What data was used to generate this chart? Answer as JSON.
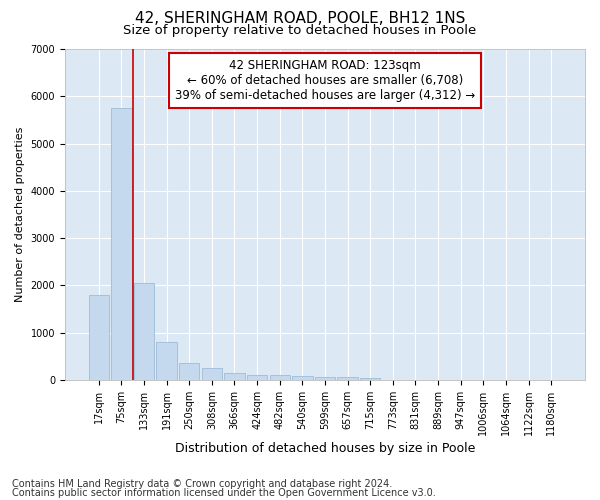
{
  "title1": "42, SHERINGHAM ROAD, POOLE, BH12 1NS",
  "title2": "Size of property relative to detached houses in Poole",
  "xlabel": "Distribution of detached houses by size in Poole",
  "ylabel": "Number of detached properties",
  "bin_labels": [
    "17sqm",
    "75sqm",
    "133sqm",
    "191sqm",
    "250sqm",
    "308sqm",
    "366sqm",
    "424sqm",
    "482sqm",
    "540sqm",
    "599sqm",
    "657sqm",
    "715sqm",
    "773sqm",
    "831sqm",
    "889sqm",
    "947sqm",
    "1006sqm",
    "1064sqm",
    "1122sqm",
    "1180sqm"
  ],
  "bar_heights": [
    1800,
    5750,
    2050,
    800,
    360,
    250,
    150,
    100,
    100,
    80,
    50,
    50,
    40,
    0,
    0,
    0,
    0,
    0,
    0,
    0,
    0
  ],
  "bar_color": "#c5d9ee",
  "bar_edge_color": "#9dbdd8",
  "ylim": [
    0,
    7000
  ],
  "yticks": [
    0,
    1000,
    2000,
    3000,
    4000,
    5000,
    6000,
    7000
  ],
  "vline_x_index": 1.5,
  "vline_color": "#cc0000",
  "annotation_text": "42 SHERINGHAM ROAD: 123sqm\n← 60% of detached houses are smaller (6,708)\n39% of semi-detached houses are larger (4,312) →",
  "annotation_box_color": "#ffffff",
  "annotation_box_edgecolor": "#cc0000",
  "footer1": "Contains HM Land Registry data © Crown copyright and database right 2024.",
  "footer2": "Contains public sector information licensed under the Open Government Licence v3.0.",
  "fig_background_color": "#ffffff",
  "plot_background_color": "#dce9f5",
  "grid_color": "#ffffff",
  "title1_fontsize": 11,
  "title2_fontsize": 9.5,
  "xlabel_fontsize": 9,
  "ylabel_fontsize": 8,
  "tick_fontsize": 7,
  "annotation_fontsize": 8.5,
  "footer_fontsize": 7
}
